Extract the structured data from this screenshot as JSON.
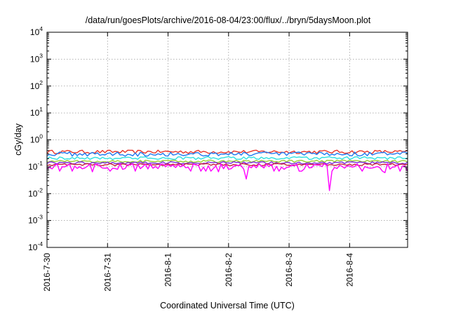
{
  "chart_data": {
    "type": "line",
    "title": "/data/run/goesPlots/archive/2016-08-04/23:00/flux/../bryn/5daysMoon.plot",
    "xlabel": "Coordinated Universal Time (UTC)",
    "ylabel": "cGy/day",
    "y_scale": "log",
    "ylim": [
      0.0001,
      10000
    ],
    "y_ticks": [
      {
        "base": "10",
        "exp": "-4",
        "value": 0.0001
      },
      {
        "base": "10",
        "exp": "-3",
        "value": 0.001
      },
      {
        "base": "10",
        "exp": "-2",
        "value": 0.01
      },
      {
        "base": "10",
        "exp": "-1",
        "value": 0.1
      },
      {
        "base": "10",
        "exp": "0",
        "value": 1
      },
      {
        "base": "10",
        "exp": "1",
        "value": 10
      },
      {
        "base": "10",
        "exp": "2",
        "value": 100
      },
      {
        "base": "10",
        "exp": "3",
        "value": 1000
      },
      {
        "base": "10",
        "exp": "4",
        "value": 10000
      }
    ],
    "x_start": "2016-07-30",
    "x_end": "2016-08-04 23:00",
    "x_ticks": [
      "2016-7-30",
      "2016-7-31",
      "2016-8-1",
      "2016-8-2",
      "2016-8-3",
      "2016-8-4"
    ],
    "grid": true,
    "legend": "none",
    "sample_interval_hours": 1,
    "series": [
      {
        "color": "#e8342a",
        "base": 0.36,
        "noise_pct": 15
      },
      {
        "color": "#1e78f0",
        "base": 0.3,
        "noise_pct": 18
      },
      {
        "color": "#2ee0e0",
        "base": 0.21,
        "noise_pct": 12
      },
      {
        "color": "#9acd32",
        "base": 0.16,
        "noise_pct": 10
      },
      {
        "color": "#7a2ad8",
        "base": 0.14,
        "noise_pct": 10
      },
      {
        "color": "#c81e3c",
        "base": 0.12,
        "noise_pct": 10
      },
      {
        "color": "#ff00ff",
        "base": 0.105,
        "noise_pct": 25,
        "dips": [
          {
            "time": "2016-08-02 07:00",
            "value": 0.035
          },
          {
            "time": "2016-08-03 16:00",
            "value": 0.013
          },
          {
            "time": "2016-07-30 18:00",
            "value": 0.065
          },
          {
            "time": "2016-08-01 20:00",
            "value": 0.065
          },
          {
            "time": "2016-08-04 14:00",
            "value": 0.06
          }
        ]
      }
    ]
  }
}
